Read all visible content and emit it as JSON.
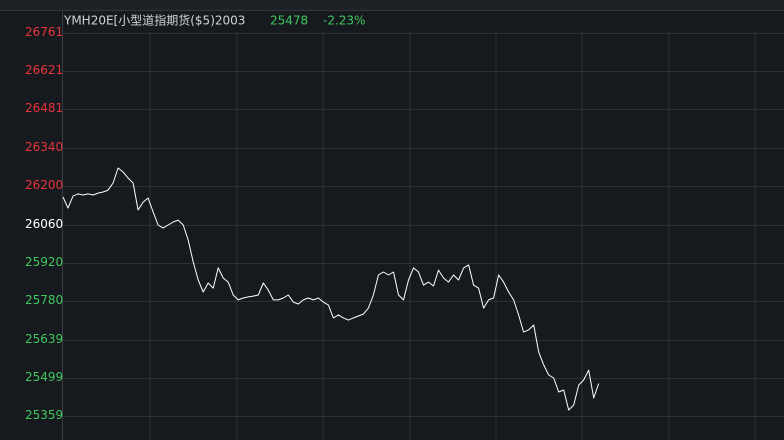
{
  "chart_data": {
    "type": "line",
    "title": "YMH20E[小型道指期货($5)2003",
    "last_price": 25478,
    "change": "-2.23%",
    "header_color": "#cfd3d8",
    "quote_color": "#3fc860",
    "color": "#ffffff",
    "grid": true,
    "ylim": [
      25359,
      26761
    ],
    "yticks": [
      26761,
      26621,
      26481,
      26340,
      26200,
      26060,
      25920,
      25780,
      25639,
      25499,
      25359
    ],
    "ytick_colors": [
      "#e8343c",
      "#e8343c",
      "#e8343c",
      "#e8343c",
      "#e8343c",
      "#ffffff",
      "#3fc860",
      "#3fc860",
      "#3fc860",
      "#3fc860",
      "#3fc860"
    ],
    "values": [
      26161,
      26120,
      26164,
      26172,
      26168,
      26172,
      26168,
      26175,
      26179,
      26186,
      26212,
      26267,
      26252,
      26230,
      26212,
      26113,
      26142,
      26157,
      26106,
      26058,
      26047,
      26058,
      26069,
      26076,
      26058,
      26003,
      25923,
      25857,
      25813,
      25846,
      25827,
      25901,
      25864,
      25849,
      25802,
      25784,
      25791,
      25795,
      25798,
      25802,
      25846,
      25820,
      25784,
      25784,
      25791,
      25802,
      25776,
      25769,
      25784,
      25791,
      25784,
      25791,
      25776,
      25765,
      25718,
      25729,
      25718,
      25710,
      25718,
      25725,
      25732,
      25754,
      25802,
      25875,
      25886,
      25875,
      25886,
      25802,
      25784,
      25857,
      25901,
      25886,
      25838,
      25849,
      25835,
      25893,
      25864,
      25849,
      25875,
      25857,
      25901,
      25912,
      25838,
      25827,
      25754,
      25784,
      25791,
      25875,
      25849,
      25813,
      25784,
      25729,
      25666,
      25674,
      25692,
      25593,
      25546,
      25509,
      25498,
      25447,
      25454,
      25381,
      25399,
      25472,
      25491,
      25527,
      25425,
      25478,
      null,
      null,
      null,
      null,
      null,
      null,
      null,
      null,
      null,
      null,
      null,
      null,
      null,
      null,
      null,
      null,
      null,
      null,
      null,
      null,
      null,
      null,
      null,
      null,
      null,
      null,
      null,
      null,
      null,
      null,
      null,
      null,
      null,
      null,
      null,
      null
    ]
  }
}
